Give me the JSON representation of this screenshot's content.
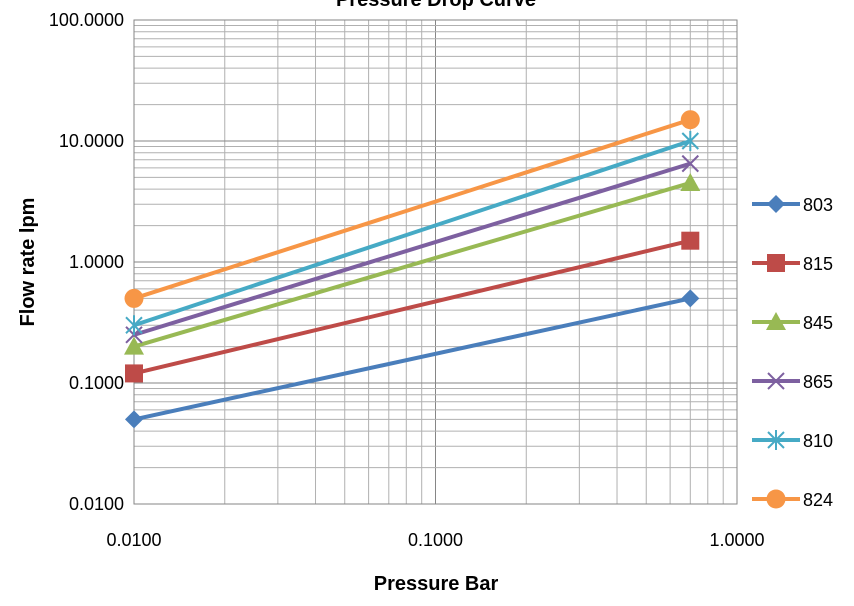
{
  "chart_data": {
    "type": "line",
    "title": "Pressure Drop Curve",
    "xlabel": "Pressure Bar",
    "ylabel": "Flow rate lpm",
    "x_scale": "log",
    "y_scale": "log",
    "xlim": [
      0.01,
      1.0
    ],
    "ylim": [
      0.01,
      100.0
    ],
    "grid": true,
    "legend_position": "right",
    "x_ticks": [
      "0.0100",
      "0.1000",
      "1.0000"
    ],
    "y_ticks": [
      "100.0000",
      "10.0000",
      "1.0000",
      "0.1000",
      "0.0100"
    ],
    "x": [
      0.01,
      0.7
    ],
    "series": [
      {
        "name": "803",
        "values": [
          0.05,
          0.5
        ],
        "color": "#4a7ebb",
        "marker": "diamond"
      },
      {
        "name": "815",
        "values": [
          0.12,
          1.5
        ],
        "color": "#be4b48",
        "marker": "square"
      },
      {
        "name": "845",
        "values": [
          0.2,
          4.5
        ],
        "color": "#98b954",
        "marker": "triangle"
      },
      {
        "name": "865",
        "values": [
          0.25,
          6.5
        ],
        "color": "#7d60a0",
        "marker": "x"
      },
      {
        "name": "810",
        "values": [
          0.3,
          10.0
        ],
        "color": "#46aac5",
        "marker": "star"
      },
      {
        "name": "824",
        "values": [
          0.5,
          15.0
        ],
        "color": "#f79646",
        "marker": "circle"
      }
    ]
  }
}
